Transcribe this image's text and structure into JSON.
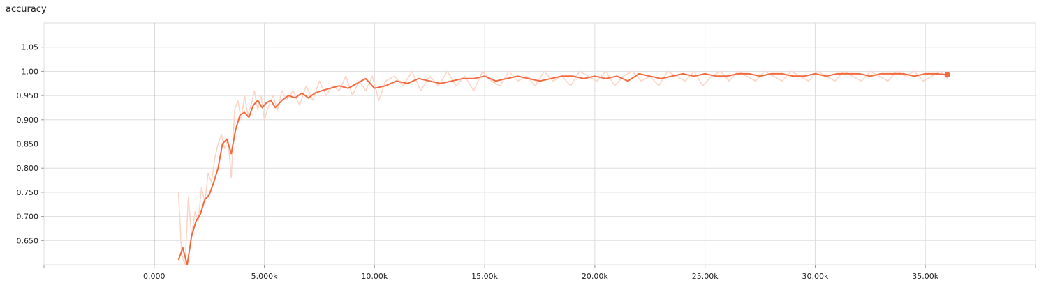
{
  "chart_data": {
    "type": "line",
    "title": "accuracy",
    "xlabel": "",
    "ylabel": "",
    "xlim": [
      -5000,
      40000
    ],
    "ylim": [
      0.6,
      1.1
    ],
    "x_ticks": [
      0,
      5000,
      10000,
      15000,
      20000,
      25000,
      30000,
      35000
    ],
    "x_tick_labels": [
      "0.000",
      "5.000k",
      "10.00k",
      "15.00k",
      "20.00k",
      "25.00k",
      "30.00k",
      "35.00k"
    ],
    "y_ticks": [
      0.65,
      0.7,
      0.75,
      0.8,
      0.85,
      0.9,
      0.95,
      1.0,
      1.05
    ],
    "y_tick_labels": [
      "0.650",
      "0.700",
      "0.750",
      "0.800",
      "0.850",
      "0.900",
      "0.950",
      "1.00",
      "1.05"
    ],
    "grid": true,
    "colors": {
      "smoothed": "#f26a3d",
      "raw": "#fcd3c4",
      "grid": "#dddddd",
      "zero_line": "#777777"
    },
    "series": [
      {
        "style": "smoothed",
        "x": [
          1100,
          1300,
          1500,
          1700,
          1900,
          2100,
          2300,
          2500,
          2700,
          2900,
          3100,
          3300,
          3500,
          3700,
          3900,
          4100,
          4300,
          4500,
          4700,
          4900,
          5100,
          5300,
          5500,
          5800,
          6100,
          6400,
          6700,
          7000,
          7300,
          7600,
          8000,
          8400,
          8800,
          9200,
          9600,
          10000,
          10500,
          11000,
          11500,
          12000,
          12500,
          13000,
          13500,
          14000,
          14500,
          15000,
          15500,
          16000,
          16500,
          17000,
          17500,
          18000,
          18500,
          19000,
          19500,
          20000,
          20500,
          21000,
          21500,
          22000,
          22500,
          23000,
          23500,
          24000,
          24500,
          25000,
          25500,
          26000,
          26500,
          27000,
          27500,
          28000,
          28500,
          29000,
          29500,
          30000,
          30500,
          31000,
          31500,
          32000,
          32500,
          33000,
          33500,
          34000,
          34500,
          35000,
          35500,
          36000
        ],
        "y": [
          0.61,
          0.635,
          0.6,
          0.66,
          0.69,
          0.705,
          0.735,
          0.745,
          0.77,
          0.8,
          0.85,
          0.86,
          0.83,
          0.88,
          0.91,
          0.915,
          0.905,
          0.93,
          0.94,
          0.925,
          0.935,
          0.94,
          0.925,
          0.94,
          0.95,
          0.945,
          0.955,
          0.945,
          0.955,
          0.96,
          0.965,
          0.97,
          0.965,
          0.975,
          0.985,
          0.965,
          0.97,
          0.98,
          0.975,
          0.985,
          0.98,
          0.975,
          0.98,
          0.985,
          0.985,
          0.99,
          0.98,
          0.985,
          0.99,
          0.985,
          0.98,
          0.985,
          0.99,
          0.99,
          0.985,
          0.99,
          0.985,
          0.99,
          0.98,
          0.995,
          0.99,
          0.985,
          0.99,
          0.995,
          0.99,
          0.995,
          0.99,
          0.99,
          0.995,
          0.995,
          0.99,
          0.995,
          0.995,
          0.99,
          0.99,
          0.995,
          0.99,
          0.995,
          0.995,
          0.995,
          0.99,
          0.995,
          0.995,
          0.995,
          0.99,
          0.995,
          0.995,
          0.993
        ]
      },
      {
        "style": "raw",
        "x": [
          1100,
          1250,
          1400,
          1550,
          1700,
          1850,
          2000,
          2150,
          2300,
          2450,
          2600,
          2750,
          2900,
          3050,
          3200,
          3350,
          3500,
          3650,
          3800,
          3950,
          4100,
          4250,
          4400,
          4550,
          4700,
          4850,
          5000,
          5200,
          5400,
          5600,
          5800,
          6000,
          6300,
          6600,
          6900,
          7200,
          7500,
          7800,
          8100,
          8400,
          8700,
          9000,
          9300,
          9600,
          9900,
          10200,
          10500,
          10900,
          11300,
          11700,
          12100,
          12500,
          12900,
          13300,
          13700,
          14100,
          14500,
          14900,
          15300,
          15700,
          16100,
          16500,
          16900,
          17300,
          17700,
          18100,
          18500,
          18900,
          19300,
          19700,
          20100,
          20500,
          20900,
          21300,
          21700,
          22100,
          22500,
          22900,
          23300,
          23700,
          24100,
          24500,
          24900,
          25300,
          25700,
          26100,
          26500,
          26900,
          27300,
          27700,
          28100,
          28500,
          28900,
          29300,
          29700,
          30100,
          30500,
          30900,
          31300,
          31700,
          32100,
          32500,
          32900,
          33300,
          33700,
          34100,
          34500,
          34900,
          35300,
          35700,
          36000
        ],
        "y": [
          0.75,
          0.62,
          0.6,
          0.74,
          0.66,
          0.71,
          0.69,
          0.76,
          0.73,
          0.79,
          0.77,
          0.82,
          0.85,
          0.87,
          0.84,
          0.86,
          0.78,
          0.92,
          0.94,
          0.9,
          0.95,
          0.91,
          0.93,
          0.96,
          0.92,
          0.95,
          0.9,
          0.93,
          0.95,
          0.92,
          0.96,
          0.94,
          0.96,
          0.93,
          0.97,
          0.94,
          0.98,
          0.95,
          0.97,
          0.96,
          0.99,
          0.95,
          0.98,
          0.96,
          0.99,
          0.94,
          0.98,
          0.99,
          0.97,
          1.0,
          0.96,
          0.99,
          0.97,
          1.0,
          0.97,
          0.99,
          0.96,
          1.0,
          0.98,
          0.97,
          1.0,
          0.98,
          0.99,
          0.97,
          1.0,
          0.98,
          0.99,
          0.97,
          1.0,
          0.99,
          0.98,
          1.0,
          0.97,
          0.99,
          1.0,
          0.98,
          0.99,
          0.97,
          1.0,
          0.99,
          0.98,
          1.0,
          0.97,
          0.99,
          1.0,
          0.98,
          1.0,
          0.99,
          0.98,
          1.0,
          0.99,
          0.98,
          1.0,
          0.99,
          0.98,
          1.0,
          0.99,
          0.98,
          1.0,
          0.99,
          0.98,
          1.0,
          0.99,
          0.98,
          1.0,
          0.99,
          1.0,
          0.98,
          0.99,
          1.0,
          0.985
        ]
      }
    ]
  }
}
